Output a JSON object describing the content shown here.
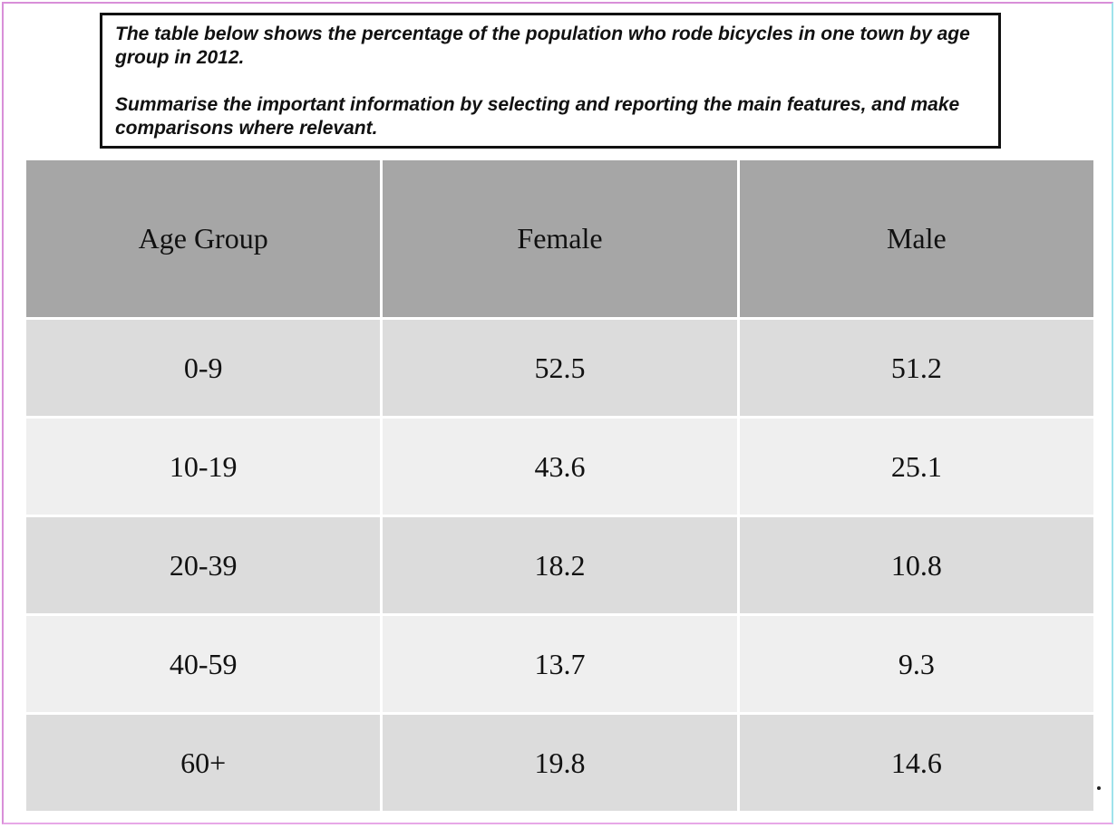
{
  "prompt": {
    "line1": "The table below shows the percentage of the population who rode bicycles in one town by age group in 2012.",
    "line2": "Summarise the important information by selecting and reporting the main features, and make comparisons where relevant."
  },
  "chart_data": {
    "type": "table",
    "columns": [
      "Age Group",
      "Female",
      "Male"
    ],
    "rows": [
      [
        "0-9",
        "52.5",
        "51.2"
      ],
      [
        "10-19",
        "43.6",
        "25.1"
      ],
      [
        "20-39",
        "18.2",
        "10.8"
      ],
      [
        "40-59",
        "13.7",
        "9.3"
      ],
      [
        "60+",
        "19.8",
        "14.6"
      ]
    ],
    "categories": [
      "0-9",
      "10-19",
      "20-39",
      "40-59",
      "60+"
    ],
    "series": [
      {
        "name": "Female",
        "values": [
          52.5,
          43.6,
          18.2,
          13.7,
          19.8
        ]
      },
      {
        "name": "Male",
        "values": [
          51.2,
          25.1,
          10.8,
          9.3,
          14.6
        ]
      }
    ]
  },
  "colors": {
    "header_bg": "#a6a6a6",
    "row_dark_bg": "#dcdcdc",
    "row_light_bg": "#efefef"
  }
}
